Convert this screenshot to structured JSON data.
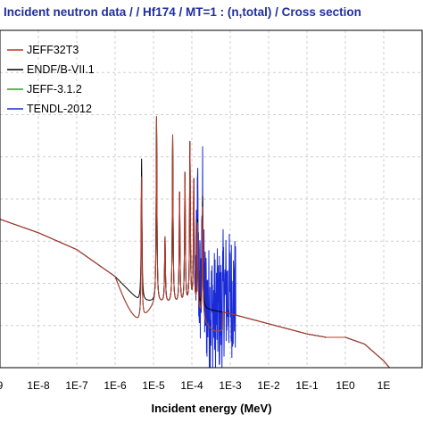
{
  "chart_data": {
    "type": "line",
    "title": "Incident neutron data / / Hf174 / MT=1 : (n,total) / Cross section",
    "xlabel": "Incident energy (MeV)",
    "ylabel": "",
    "x_scale": "log",
    "xlim": [
      "1E-9",
      "1E2"
    ],
    "x_tick_labels": [
      "9",
      "1E-8",
      "1E-7",
      "1E-6",
      "1E-5",
      "1E-4",
      "1E-3",
      "1E-2",
      "1E-1",
      "1E0",
      "1E"
    ],
    "grid": true,
    "legend_position": "top-left",
    "series": [
      {
        "name": "JEFF32T3",
        "color": "#c0392b"
      },
      {
        "name": "ENDF/B-VII.1",
        "color": "#000000"
      },
      {
        "name": "JEFF-3.1.2",
        "color": "#2e9e2e"
      },
      {
        "name": "TENDL-2012",
        "color": "#1a2bd6"
      }
    ]
  }
}
